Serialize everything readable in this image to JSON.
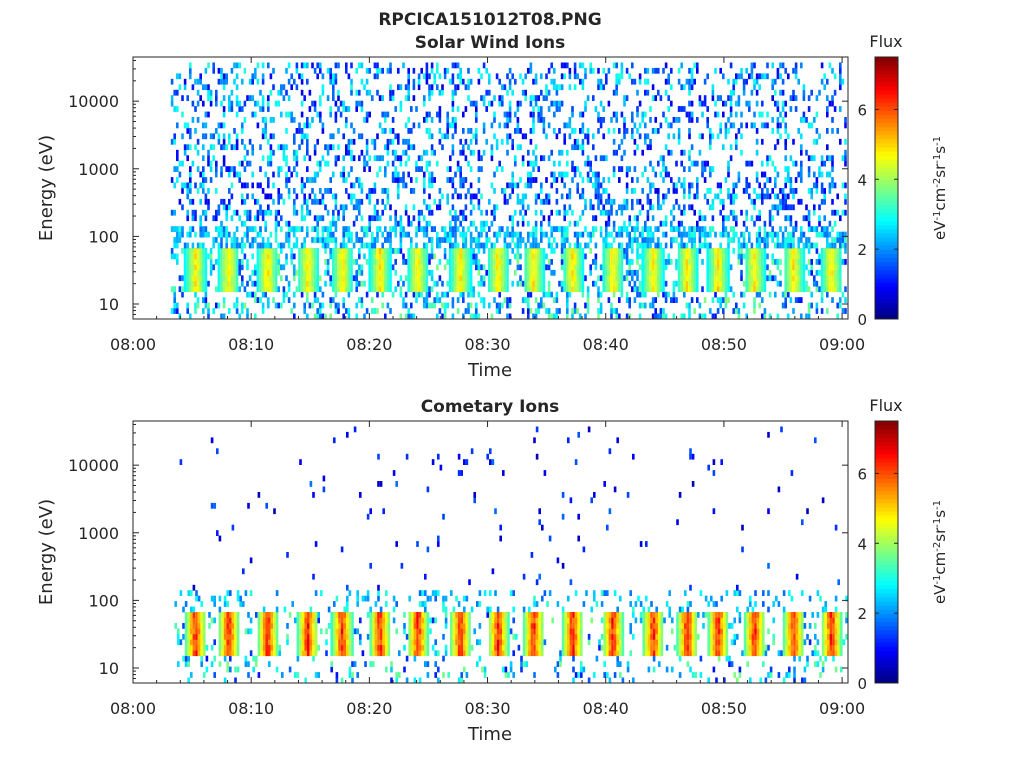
{
  "figure": {
    "title": "RPCICA151012T08.PNG"
  },
  "colors": {
    "scale": [
      "#00007f",
      "#0000ff",
      "#007fff",
      "#00ffff",
      "#7fff7f",
      "#ffff00",
      "#ff7f00",
      "#ff0000",
      "#7f0000"
    ],
    "axis": "#262626",
    "background": "#ffffff"
  },
  "chart_data": [
    {
      "type": "heatmap",
      "title": "Solar Wind Ions",
      "xlabel": "Time",
      "ylabel": "Energy (eV)",
      "x_ticks": [
        "08:00",
        "08:10",
        "08:20",
        "08:30",
        "08:40",
        "08:50",
        "09:00"
      ],
      "x_range_minutes": [
        0,
        60.5
      ],
      "y_ticks": [
        "10",
        "100",
        "1000",
        "10000"
      ],
      "y_tick_values": [
        10,
        100,
        1000,
        10000
      ],
      "y_range": [
        6,
        45000
      ],
      "y_scale": "log",
      "data_start_minute": 3.2,
      "colorbar": {
        "label": "Flux",
        "unit": "eV-1cm-2sr-1s-1",
        "range": [
          0,
          7.5
        ],
        "ticks": [
          "0",
          "2",
          "4",
          "6"
        ],
        "tick_values": [
          0,
          2,
          4,
          6
        ]
      },
      "bursts_minutes": [
        5.2,
        8.0,
        11.3,
        14.7,
        17.6,
        20.8,
        24.0,
        27.6,
        30.8,
        33.8,
        37.1,
        40.5,
        43.9,
        46.8,
        49.4,
        52.5,
        55.8,
        59.0
      ],
      "burst_energy_eV": 25,
      "peak_flux": 5.2,
      "background_scatter": "sparse dots 40–40000 eV, flux 1–3"
    },
    {
      "type": "heatmap",
      "title": "Cometary Ions",
      "xlabel": "Time",
      "ylabel": "Energy (eV)",
      "x_ticks": [
        "08:00",
        "08:10",
        "08:20",
        "08:30",
        "08:40",
        "08:50",
        "09:00"
      ],
      "x_range_minutes": [
        0,
        60.5
      ],
      "y_ticks": [
        "10",
        "100",
        "1000",
        "10000"
      ],
      "y_tick_values": [
        10,
        100,
        1000,
        10000
      ],
      "y_range": [
        6,
        45000
      ],
      "y_scale": "log",
      "data_start_minute": 3.5,
      "colorbar": {
        "label": "Flux",
        "unit": "eV-1cm-2sr-1s-1",
        "range": [
          0,
          7.5
        ],
        "ticks": [
          "0",
          "2",
          "4",
          "6"
        ],
        "tick_values": [
          0,
          2,
          4,
          6
        ]
      },
      "bursts_minutes": [
        5.2,
        8.0,
        11.3,
        14.7,
        17.6,
        20.8,
        24.0,
        27.6,
        30.8,
        33.8,
        37.1,
        40.5,
        43.9,
        46.8,
        49.4,
        52.5,
        55.8,
        59.0
      ],
      "burst_energy_eV": 25,
      "peak_flux": 7.0,
      "background_scatter": "very sparse dots 100–10000 eV, flux 0.5–1.5"
    }
  ]
}
